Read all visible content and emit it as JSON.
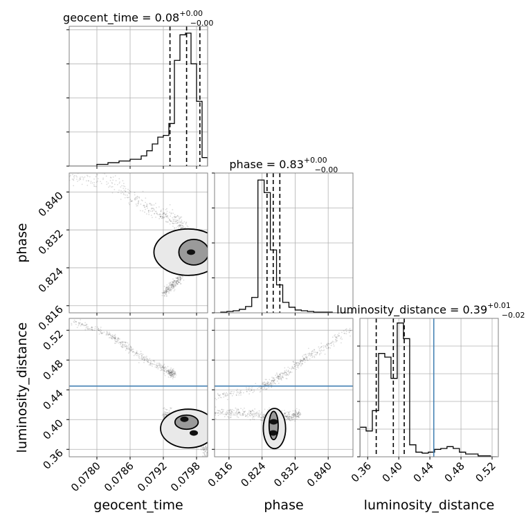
{
  "figure": {
    "colors": {
      "hist": "#000000",
      "truth": "#4682b4",
      "grid": "#b0b0b0",
      "frame": "#808080",
      "samples": "#000000"
    }
  },
  "chart_data": [
    {
      "type": "bar",
      "panel": "geocent_time-1d",
      "title": "geocent_time = 0.08",
      "title_sup": "+0.00",
      "title_sub": "−0.00",
      "xlim": [
        0.0775,
        0.08
      ],
      "bin_edges": [
        0.0775,
        0.0776,
        0.0777,
        0.0778,
        0.0779,
        0.078,
        0.0781,
        0.0782,
        0.0783,
        0.0784,
        0.0785,
        0.0786,
        0.0787,
        0.0788,
        0.0789,
        0.079,
        0.0791,
        0.0792,
        0.0793,
        0.0794,
        0.0795,
        0.0796,
        0.0797,
        0.0798,
        0.0799,
        0.08
      ],
      "counts": [
        0,
        0,
        0,
        0,
        0,
        1,
        1,
        2,
        2,
        3,
        3,
        4,
        4,
        6,
        9,
        13,
        17,
        18,
        25,
        62,
        77,
        78,
        60,
        38,
        5
      ],
      "quantile_lines": [
        0.07932,
        0.07962,
        0.07986
      ],
      "ylim": [
        0,
        82
      ],
      "y_ticks": [
        0,
        20,
        40,
        60,
        80
      ]
    },
    {
      "type": "scatter",
      "panel": "phase-vs-geocent_time",
      "xlim": [
        0.0775,
        0.08
      ],
      "ylim": [
        0.8145,
        0.844
      ],
      "point_clouds": [
        {
          "x": [
            0.0775,
            0.0783,
            0.0787,
            0.0791,
            0.0794,
            0.0796,
            0.08
          ],
          "y": [
            0.8432,
            0.842,
            0.838,
            0.8355,
            0.834,
            0.832,
            0.827
          ],
          "width": 0.0017
        },
        {
          "x": [
            0.0792,
            0.0796,
            0.08
          ],
          "y": [
            0.8185,
            0.823,
            0.826
          ],
          "width": 0.001
        }
      ],
      "contour_levels": [
        {
          "cx": 0.07975,
          "cy": 0.8273,
          "rx": 0.00027,
          "ry": 0.0027
        },
        {
          "cx": 0.07965,
          "cy": 0.8273,
          "rx": 0.00062,
          "ry": 0.0049
        }
      ],
      "density_peak": {
        "x": 0.0797,
        "y": 0.8273
      }
    },
    {
      "type": "bar",
      "panel": "phase-1d",
      "title": "phase = 0.83",
      "title_sup": "+0.00",
      "title_sub": "−0.00",
      "xlim": [
        0.8125,
        0.846
      ],
      "bin_edges": [
        0.8125,
        0.814,
        0.8155,
        0.817,
        0.8185,
        0.82,
        0.8215,
        0.823,
        0.8245,
        0.826,
        0.8275,
        0.829,
        0.8305,
        0.832,
        0.8335,
        0.835,
        0.8365,
        0.838,
        0.8395,
        0.841,
        0.8425,
        0.844,
        0.8455
      ],
      "counts": [
        0,
        1,
        2,
        3,
        5,
        9,
        22,
        190,
        172,
        90,
        40,
        15,
        8,
        4,
        3,
        2,
        1,
        1,
        1,
        0,
        0,
        0
      ],
      "quantile_lines": [
        0.8252,
        0.8267,
        0.8283
      ],
      "ylim": [
        0,
        200
      ],
      "y_ticks": [
        0,
        50,
        100,
        150,
        200
      ]
    },
    {
      "type": "scatter",
      "panel": "luminosity_distance-vs-geocent_time",
      "xlim": [
        0.0775,
        0.08
      ],
      "ylim": [
        0.35,
        0.536
      ],
      "truth_y": 0.445,
      "point_clouds": [
        {
          "x": [
            0.0776,
            0.0782,
            0.0786,
            0.079,
            0.0794,
            0.0793
          ],
          "y": [
            0.531,
            0.515,
            0.495,
            0.475,
            0.462,
            0.462
          ],
          "width": 0.005
        },
        {
          "x": [
            0.0792,
            0.0794,
            0.0798,
            0.08
          ],
          "y": [
            0.405,
            0.4,
            0.38,
            0.355
          ],
          "width": 0.012
        }
      ],
      "contour_levels": [
        {
          "cx": 0.07962,
          "cy": 0.3965,
          "rx": 0.00021,
          "ry": 0.0095
        },
        {
          "cx": 0.07965,
          "cy": 0.388,
          "rx": 0.0005,
          "ry": 0.026
        }
      ],
      "density_peaks": [
        {
          "x": 0.07958,
          "y": 0.4005
        },
        {
          "x": 0.07975,
          "y": 0.382
        }
      ]
    },
    {
      "type": "scatter",
      "panel": "luminosity_distance-vs-phase",
      "xlim": [
        0.8125,
        0.846
      ],
      "ylim": [
        0.35,
        0.536
      ],
      "truth_y": 0.445,
      "point_clouds": [
        {
          "x": [
            0.8125,
            0.8235,
            0.8265,
            0.83,
            0.834,
            0.84,
            0.846
          ],
          "y": [
            0.43,
            0.442,
            0.452,
            0.463,
            0.48,
            0.5,
            0.525
          ],
          "width": 0.0055
        },
        {
          "x": [
            0.812,
            0.819,
            0.824,
            0.8275,
            0.831,
            0.833
          ],
          "y": [
            0.408,
            0.41,
            0.404,
            0.406,
            0.404,
            0.408
          ],
          "width": 0.007
        }
      ],
      "contour_levels": [
        {
          "cx": 0.8268,
          "cy": 0.392,
          "rx": 0.0011,
          "ry": 0.019
        },
        {
          "cx": 0.827,
          "cy": 0.388,
          "rx": 0.0027,
          "ry": 0.027
        }
      ],
      "density_peaks": [
        {
          "x": 0.8268,
          "y": 0.397
        },
        {
          "x": 0.8267,
          "y": 0.382
        }
      ]
    },
    {
      "type": "bar",
      "panel": "luminosity_distance-1d",
      "title": "luminosity_distance = 0.39",
      "title_sup": "+0.01",
      "title_sub": "−0.02",
      "xlim": [
        0.35,
        0.528
      ],
      "bin_edges": [
        0.35,
        0.358,
        0.366,
        0.374,
        0.382,
        0.39,
        0.398,
        0.406,
        0.414,
        0.422,
        0.43,
        0.438,
        0.446,
        0.454,
        0.462,
        0.47,
        0.478,
        0.486,
        0.494,
        0.502,
        0.51,
        0.518,
        0.526
      ],
      "counts": [
        32,
        28,
        50,
        112,
        108,
        85,
        145,
        128,
        13,
        5,
        4,
        5,
        8,
        9,
        11,
        9,
        5,
        3,
        3,
        1,
        1,
        0
      ],
      "quantile_lines": [
        0.371,
        0.393,
        0.407
      ],
      "truth_x": 0.445,
      "ylim": [
        0,
        150
      ],
      "y_ticks": [
        0,
        30,
        60,
        90,
        120
      ]
    }
  ],
  "axes_labels": {
    "bottom": {
      "geocent_time": {
        "label": "geocent_time",
        "ticks": [
          "0.0780",
          "0.0786",
          "0.0792",
          "0.0798"
        ]
      },
      "phase": {
        "label": "phase",
        "ticks": [
          "0.816",
          "0.824",
          "0.832",
          "0.840"
        ]
      },
      "luminosity_distance": {
        "label": "luminosity_distance",
        "ticks": [
          "0.36",
          "0.40",
          "0.44",
          "0.48",
          "0.52"
        ]
      }
    },
    "left": {
      "phase": {
        "label": "phase",
        "ticks": [
          "0.840",
          "0.832",
          "0.824",
          "0.816"
        ]
      },
      "luminosity_distance": {
        "label": "luminosity_distance",
        "ticks": [
          "0.52",
          "0.48",
          "0.44",
          "0.40",
          "0.36"
        ]
      }
    }
  }
}
